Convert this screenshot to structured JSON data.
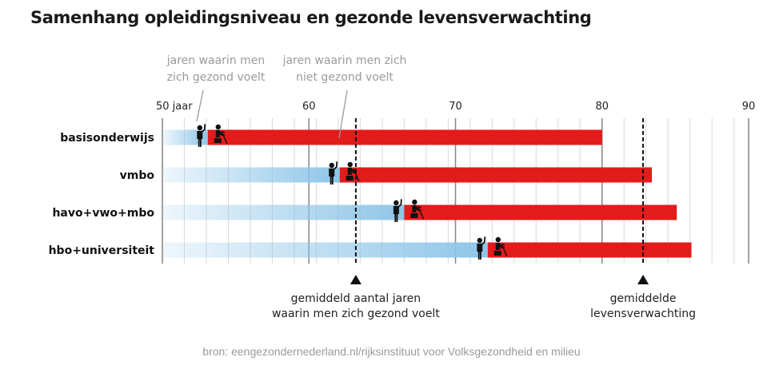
{
  "chart_data": {
    "type": "bar",
    "orientation": "horizontal",
    "stacked": true,
    "title": "Samenhang opleidingsniveau en gezonde levensverwachting",
    "xlabel": "",
    "ylabel": "",
    "xlim": [
      50,
      90
    ],
    "x_ticks": [
      50,
      60,
      70,
      80,
      90
    ],
    "x_tick_labels": [
      "50 jaar",
      "60",
      "70",
      "80",
      "90"
    ],
    "minor_tick_step": 1.5,
    "grid": true,
    "categories": [
      "basisonderwijs",
      "vmbo",
      "havo+vwo+mbo",
      "hbo+universiteit"
    ],
    "series": [
      {
        "name": "jaren waarin men zich gezond voelt",
        "color": "#8ec5e8",
        "end_values": [
          53.1,
          62.1,
          66.5,
          72.2
        ]
      },
      {
        "name": "jaren waarin men zich niet gezond voelt",
        "color": "#e31b1b",
        "end_values": [
          80.0,
          83.4,
          85.1,
          86.1
        ]
      }
    ],
    "annotations": {
      "healthy_label_lines": [
        "jaren waarin men",
        "zich gezond voelt"
      ],
      "unhealthy_label_lines": [
        "jaren waarin men zich",
        "niet gezond voelt"
      ]
    },
    "reference_lines": [
      {
        "name": "avg-healthy-years",
        "value": 63.2,
        "label_lines": [
          "gemiddeld aantal jaren",
          "waarin men zich gezond voelt"
        ]
      },
      {
        "name": "avg-life-expectancy",
        "value": 82.8,
        "label_lines": [
          "gemiddelde",
          "levensverwachting"
        ]
      }
    ],
    "icons": {
      "healthy": "standing-person-waving-icon",
      "unhealthy": "seated-person-with-cane-icon"
    }
  },
  "source": "bron: eengezondernederland.nl/rijksinstituut voor Volksgezondheid en milieu"
}
